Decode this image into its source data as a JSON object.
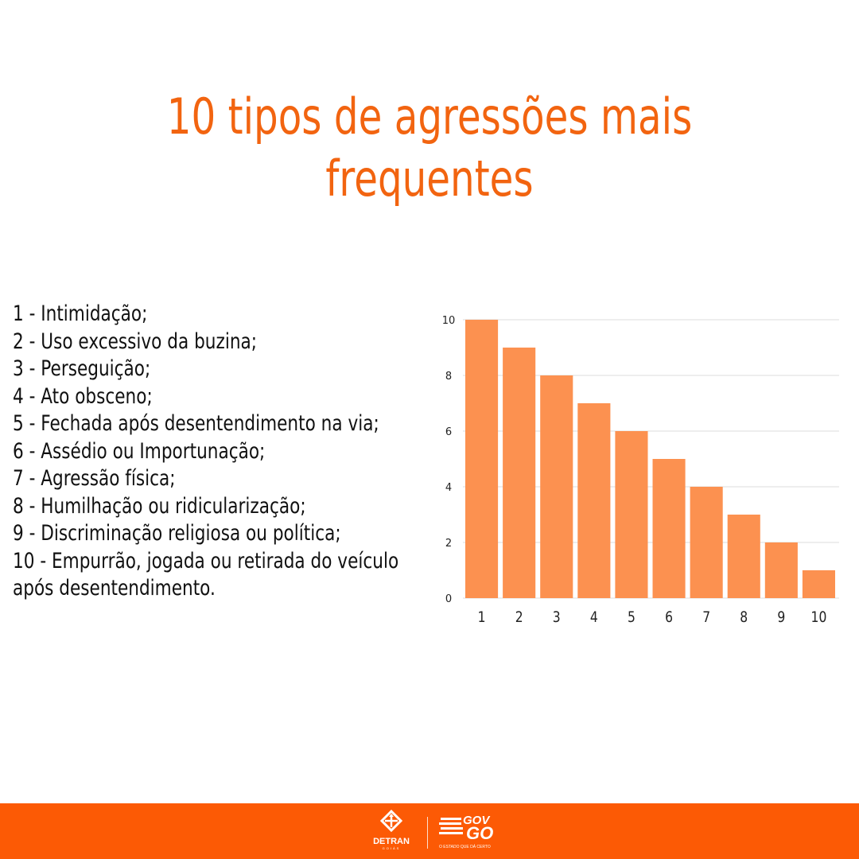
{
  "title": {
    "line1": "10 tipos de agressões mais",
    "line2": "frequentes"
  },
  "list_items": [
    "1 - Intimidação;",
    "2 - Uso excessivo da buzina;",
    "3 - Perseguição;",
    "4 - Ato obsceno;",
    "5 - Fechada após desentendimento na via;",
    "6 - Assédio ou Importunação;",
    "7 - Agressão física;",
    "8 - Humilhação ou ridicularização;",
    "9 - Discriminação religiosa ou política;",
    "10 - Empurrão, jogada ou retirada do veículo",
    "após desentendimento."
  ],
  "chart_data": {
    "type": "bar",
    "categories": [
      "1",
      "2",
      "3",
      "4",
      "5",
      "6",
      "7",
      "8",
      "9",
      "10"
    ],
    "values": [
      10,
      9,
      8,
      7,
      6,
      5,
      4,
      3,
      2,
      1
    ],
    "yticks": [
      "0",
      "2",
      "4",
      "6",
      "8",
      "10"
    ],
    "ylim": [
      0,
      10
    ],
    "grid": true,
    "bar_color": "#fc9150"
  },
  "footer": {
    "detran_name": "DETRAN",
    "detran_state": "GOIÁS",
    "gov_line1": "GOV",
    "gov_line2": "GO",
    "gov_slogan": "O ESTADO QUE DÁ CERTO"
  },
  "colors": {
    "title": "#f26410",
    "footer": "#fc5a05",
    "bar": "#fc9150",
    "text": "#111111"
  }
}
